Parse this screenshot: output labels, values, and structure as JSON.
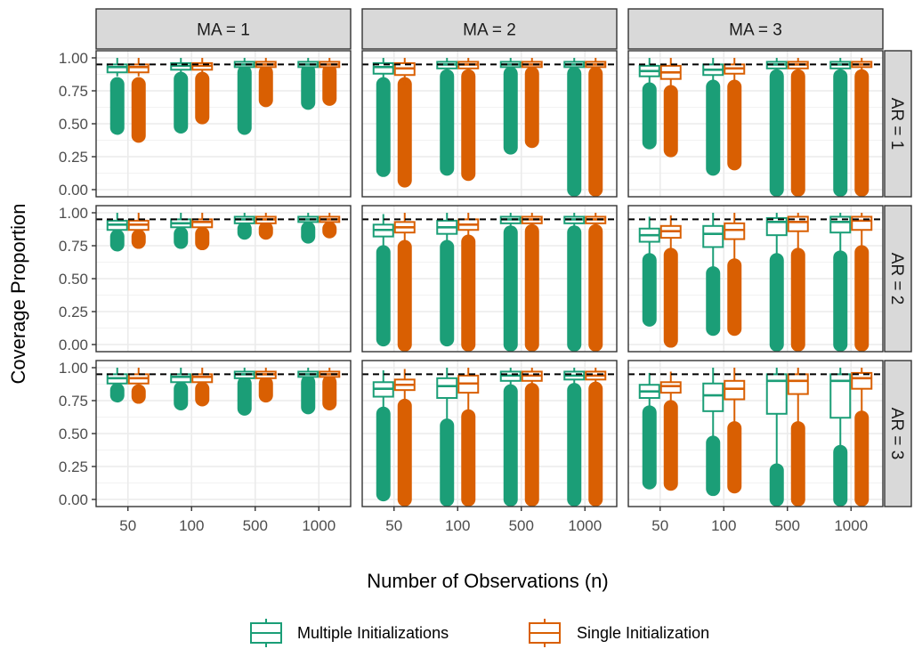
{
  "chart_data": {
    "type": "boxplot",
    "xlabel": "Number of Observations (n)",
    "ylabel": "Coverage Proportion",
    "categories": [
      "50",
      "100",
      "500",
      "1000"
    ],
    "ylim": [
      0,
      1
    ],
    "y_ticks": [
      "0.00",
      "0.25",
      "0.50",
      "0.75",
      "1.00"
    ],
    "reference_line": 0.95,
    "col_facets": [
      "MA = 1",
      "MA = 2",
      "MA = 3"
    ],
    "row_facets": [
      "AR = 1",
      "AR = 2",
      "AR = 3"
    ],
    "series": [
      {
        "name": "Multiple Initializations",
        "color": "#1b9e77"
      },
      {
        "name": "Single Initialization",
        "color": "#d95f02"
      }
    ],
    "legend_position": "bottom",
    "panels": [
      {
        "row": 0,
        "col": 0,
        "boxes": [
          [
            [
              0.86,
              0.89,
              0.93,
              0.95,
              1.0,
              0.47,
              0.8
            ],
            [
              0.86,
              0.89,
              0.93,
              0.95,
              1.0,
              0.41,
              0.8
            ]
          ],
          [
            [
              0.87,
              0.91,
              0.94,
              0.96,
              1.0,
              0.48,
              0.84
            ],
            [
              0.87,
              0.91,
              0.94,
              0.96,
              1.0,
              0.55,
              0.84
            ]
          ],
          [
            [
              0.89,
              0.93,
              0.95,
              0.97,
              1.0,
              0.47,
              0.89
            ],
            [
              0.89,
              0.93,
              0.95,
              0.97,
              1.0,
              0.68,
              0.89
            ]
          ],
          [
            [
              0.9,
              0.93,
              0.95,
              0.97,
              1.0,
              0.66,
              0.9
            ],
            [
              0.9,
              0.93,
              0.95,
              0.97,
              1.0,
              0.69,
              0.9
            ]
          ]
        ]
      },
      {
        "row": 0,
        "col": 1,
        "boxes": [
          [
            [
              0.82,
              0.88,
              0.93,
              0.96,
              1.0,
              0.15,
              0.8
            ],
            [
              0.8,
              0.87,
              0.92,
              0.96,
              1.0,
              0.07,
              0.8
            ]
          ],
          [
            [
              0.88,
              0.92,
              0.95,
              0.97,
              1.0,
              0.16,
              0.86
            ],
            [
              0.88,
              0.92,
              0.95,
              0.97,
              1.0,
              0.12,
              0.86
            ]
          ],
          [
            [
              0.9,
              0.93,
              0.95,
              0.97,
              1.0,
              0.32,
              0.88
            ],
            [
              0.9,
              0.93,
              0.95,
              0.97,
              1.0,
              0.37,
              0.88
            ]
          ],
          [
            [
              0.9,
              0.93,
              0.95,
              0.97,
              1.0,
              0.0,
              0.88
            ],
            [
              0.9,
              0.93,
              0.95,
              0.97,
              1.0,
              0.0,
              0.88
            ]
          ]
        ]
      },
      {
        "row": 0,
        "col": 2,
        "boxes": [
          [
            [
              0.78,
              0.86,
              0.9,
              0.94,
              1.0,
              0.36,
              0.76
            ],
            [
              0.75,
              0.84,
              0.89,
              0.94,
              1.0,
              0.3,
              0.74
            ]
          ],
          [
            [
              0.8,
              0.87,
              0.91,
              0.95,
              1.0,
              0.16,
              0.78
            ],
            [
              0.8,
              0.88,
              0.92,
              0.95,
              1.0,
              0.2,
              0.78
            ]
          ],
          [
            [
              0.88,
              0.92,
              0.95,
              0.97,
              1.0,
              0.0,
              0.86
            ],
            [
              0.88,
              0.92,
              0.95,
              0.97,
              1.0,
              0.0,
              0.86
            ]
          ],
          [
            [
              0.88,
              0.92,
              0.95,
              0.97,
              1.0,
              0.0,
              0.86
            ],
            [
              0.88,
              0.93,
              0.95,
              0.97,
              1.0,
              0.0,
              0.86
            ]
          ]
        ]
      },
      {
        "row": 1,
        "col": 0,
        "boxes": [
          [
            [
              0.84,
              0.87,
              0.91,
              0.94,
              1.0,
              0.76,
              0.82
            ],
            [
              0.84,
              0.87,
              0.91,
              0.94,
              1.0,
              0.78,
              0.82
            ]
          ],
          [
            [
              0.86,
              0.89,
              0.92,
              0.95,
              1.0,
              0.78,
              0.84
            ],
            [
              0.86,
              0.89,
              0.93,
              0.95,
              1.0,
              0.77,
              0.84
            ]
          ],
          [
            [
              0.89,
              0.92,
              0.95,
              0.97,
              1.0,
              0.85,
              0.88
            ],
            [
              0.89,
              0.92,
              0.95,
              0.97,
              1.0,
              0.85,
              0.88
            ]
          ],
          [
            [
              0.89,
              0.93,
              0.95,
              0.97,
              1.0,
              0.82,
              0.88
            ],
            [
              0.89,
              0.93,
              0.95,
              0.97,
              1.0,
              0.86,
              0.88
            ]
          ]
        ]
      },
      {
        "row": 1,
        "col": 1,
        "boxes": [
          [
            [
              0.72,
              0.82,
              0.87,
              0.91,
              0.99,
              0.04,
              0.7
            ],
            [
              0.76,
              0.85,
              0.89,
              0.93,
              1.0,
              0.0,
              0.74
            ]
          ],
          [
            [
              0.76,
              0.84,
              0.89,
              0.94,
              1.0,
              0.04,
              0.74
            ],
            [
              0.8,
              0.87,
              0.91,
              0.95,
              1.0,
              0.0,
              0.78
            ]
          ],
          [
            [
              0.87,
              0.92,
              0.95,
              0.97,
              1.0,
              0.0,
              0.85
            ],
            [
              0.88,
              0.92,
              0.95,
              0.97,
              1.0,
              0.0,
              0.86
            ]
          ],
          [
            [
              0.87,
              0.92,
              0.95,
              0.97,
              1.0,
              0.0,
              0.85
            ],
            [
              0.88,
              0.92,
              0.95,
              0.97,
              1.0,
              0.0,
              0.86
            ]
          ]
        ]
      },
      {
        "row": 1,
        "col": 2,
        "boxes": [
          [
            [
              0.66,
              0.78,
              0.83,
              0.88,
              0.97,
              0.19,
              0.64
            ],
            [
              0.7,
              0.81,
              0.86,
              0.9,
              0.98,
              0.03,
              0.68
            ]
          ],
          [
            [
              0.56,
              0.74,
              0.84,
              0.9,
              1.0,
              0.12,
              0.54
            ],
            [
              0.62,
              0.8,
              0.87,
              0.92,
              1.0,
              0.12,
              0.6
            ]
          ],
          [
            [
              0.66,
              0.83,
              0.93,
              0.96,
              1.0,
              0.0,
              0.64
            ],
            [
              0.7,
              0.86,
              0.93,
              0.97,
              1.0,
              0.0,
              0.68
            ]
          ],
          [
            [
              0.68,
              0.85,
              0.93,
              0.97,
              1.0,
              0.0,
              0.66
            ],
            [
              0.72,
              0.87,
              0.94,
              0.97,
              1.0,
              0.0,
              0.7
            ]
          ]
        ]
      },
      {
        "row": 2,
        "col": 0,
        "boxes": [
          [
            [
              0.85,
              0.88,
              0.92,
              0.95,
              1.0,
              0.79,
              0.83
            ],
            [
              0.84,
              0.88,
              0.92,
              0.95,
              1.0,
              0.78,
              0.82
            ]
          ],
          [
            [
              0.86,
              0.89,
              0.93,
              0.95,
              1.0,
              0.73,
              0.84
            ],
            [
              0.86,
              0.89,
              0.93,
              0.95,
              1.0,
              0.76,
              0.84
            ]
          ],
          [
            [
              0.89,
              0.92,
              0.95,
              0.97,
              1.0,
              0.69,
              0.88
            ],
            [
              0.89,
              0.92,
              0.95,
              0.97,
              1.0,
              0.79,
              0.88
            ]
          ],
          [
            [
              0.9,
              0.93,
              0.95,
              0.97,
              1.0,
              0.7,
              0.89
            ],
            [
              0.9,
              0.93,
              0.95,
              0.97,
              1.0,
              0.73,
              0.89
            ]
          ]
        ]
      },
      {
        "row": 2,
        "col": 1,
        "boxes": [
          [
            [
              0.67,
              0.78,
              0.84,
              0.89,
              0.98,
              0.04,
              0.65
            ],
            [
              0.73,
              0.83,
              0.87,
              0.91,
              0.99,
              0.0,
              0.71
            ]
          ],
          [
            [
              0.58,
              0.77,
              0.86,
              0.92,
              1.0,
              0.0,
              0.56
            ],
            [
              0.65,
              0.81,
              0.88,
              0.94,
              1.0,
              0.0,
              0.63
            ]
          ],
          [
            [
              0.84,
              0.9,
              0.94,
              0.97,
              1.0,
              0.0,
              0.82
            ],
            [
              0.85,
              0.9,
              0.94,
              0.97,
              1.0,
              0.0,
              0.83
            ]
          ],
          [
            [
              0.85,
              0.91,
              0.94,
              0.97,
              1.0,
              0.0,
              0.83
            ],
            [
              0.86,
              0.91,
              0.94,
              0.97,
              1.0,
              0.0,
              0.84
            ]
          ]
        ]
      },
      {
        "row": 2,
        "col": 2,
        "boxes": [
          [
            [
              0.68,
              0.77,
              0.82,
              0.87,
              0.96,
              0.13,
              0.66
            ],
            [
              0.72,
              0.81,
              0.86,
              0.89,
              0.97,
              0.12,
              0.7
            ]
          ],
          [
            [
              0.45,
              0.67,
              0.79,
              0.88,
              1.0,
              0.08,
              0.43
            ],
            [
              0.56,
              0.76,
              0.84,
              0.9,
              1.0,
              0.1,
              0.54
            ]
          ],
          [
            [
              0.24,
              0.65,
              0.9,
              0.95,
              1.0,
              0.0,
              0.22
            ],
            [
              0.56,
              0.8,
              0.9,
              0.95,
              1.0,
              0.0,
              0.54
            ]
          ],
          [
            [
              0.38,
              0.62,
              0.9,
              0.95,
              1.0,
              0.0,
              0.36
            ],
            [
              0.64,
              0.84,
              0.92,
              0.96,
              1.0,
              0.0,
              0.62
            ]
          ]
        ]
      }
    ]
  }
}
